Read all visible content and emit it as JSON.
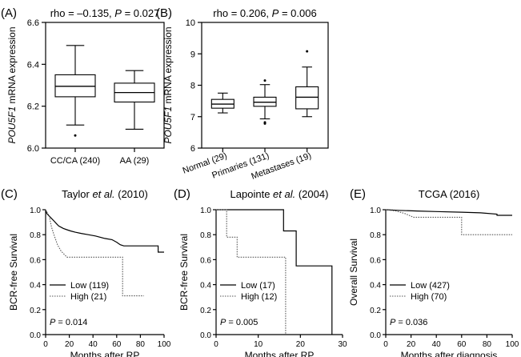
{
  "chart_data": [
    {
      "panel": "A",
      "type": "box",
      "title_rho": "rho = –0.135, ",
      "title_p": "P = 0.027",
      "ylabel_gene": "POU5F1",
      "ylabel_rest": " mRNA expression",
      "ylim": [
        6.0,
        6.6
      ],
      "yticks": [
        "6.0",
        "6.2",
        "6.4",
        "6.6"
      ],
      "ytick_values": [
        6.0,
        6.2,
        6.4,
        6.6
      ],
      "categories": [
        "CC/CA (240)",
        "AA (29)"
      ],
      "boxes": [
        {
          "name": "CC/CA (240)",
          "min": 6.11,
          "q1": 6.245,
          "median": 6.295,
          "q3": 6.35,
          "max": 6.49,
          "outliers": [
            6.06
          ]
        },
        {
          "name": "AA (29)",
          "min": 6.09,
          "q1": 6.22,
          "median": 6.265,
          "q3": 6.31,
          "max": 6.37,
          "outliers": []
        }
      ]
    },
    {
      "panel": "B",
      "type": "box",
      "title_rho": "rho = 0.206, ",
      "title_p": "P = 0.006",
      "ylabel_gene": "POU5F1",
      "ylabel_rest": " mRNA expression",
      "ylim": [
        6,
        10
      ],
      "yticks": [
        "6",
        "7",
        "8",
        "9",
        "10"
      ],
      "ytick_values": [
        6,
        7,
        8,
        9,
        10
      ],
      "categories": [
        "Normal (29)",
        "Primaries (131)",
        "Metastases (19)"
      ],
      "boxes": [
        {
          "name": "Normal (29)",
          "min": 7.12,
          "q1": 7.27,
          "median": 7.4,
          "q3": 7.55,
          "max": 7.75,
          "outliers": []
        },
        {
          "name": "Primaries (131)",
          "min": 6.93,
          "q1": 7.33,
          "median": 7.46,
          "q3": 7.62,
          "max": 8.02,
          "outliers": [
            8.15,
            6.82,
            6.78
          ]
        },
        {
          "name": "Metastases (19)",
          "min": 7.0,
          "q1": 7.25,
          "median": 7.62,
          "q3": 7.95,
          "max": 8.58,
          "outliers": [
            9.08
          ]
        }
      ]
    },
    {
      "panel": "C",
      "type": "line",
      "subtype": "kaplan-meier",
      "title_pre": "Taylor ",
      "title_em": "et al.",
      "title_post": " (2010)",
      "xlabel": "Months after RP",
      "ylabel": "BCR-free Survival",
      "xlim": [
        0,
        100
      ],
      "ylim": [
        0,
        1.0
      ],
      "xticks": [
        "0",
        "20",
        "40",
        "60",
        "80",
        "100"
      ],
      "xtick_values": [
        0,
        20,
        40,
        60,
        80,
        100
      ],
      "yticks": [
        "0.0",
        "0.2",
        "0.4",
        "0.6",
        "0.8",
        "1.0"
      ],
      "ytick_values": [
        0,
        0.2,
        0.4,
        0.6,
        0.8,
        1.0
      ],
      "p_label": "P",
      "p_value": " = 0.014",
      "legend": [
        "Low (119)",
        "High (21)"
      ],
      "series": [
        {
          "name": "Low (119)",
          "style": "solid",
          "points": [
            [
              0,
              1.0
            ],
            [
              1,
              0.97
            ],
            [
              3,
              0.95
            ],
            [
              5,
              0.93
            ],
            [
              7,
              0.91
            ],
            [
              9,
              0.89
            ],
            [
              11,
              0.87
            ],
            [
              13,
              0.86
            ],
            [
              15,
              0.85
            ],
            [
              18,
              0.84
            ],
            [
              21,
              0.83
            ],
            [
              25,
              0.82
            ],
            [
              30,
              0.81
            ],
            [
              36,
              0.8
            ],
            [
              42,
              0.79
            ],
            [
              50,
              0.77
            ],
            [
              56,
              0.76
            ],
            [
              60,
              0.74
            ],
            [
              63,
              0.72
            ],
            [
              66,
              0.71
            ],
            [
              95,
              0.71
            ],
            [
              95,
              0.66
            ],
            [
              100,
              0.66
            ]
          ]
        },
        {
          "name": "High (21)",
          "style": "dotted",
          "points": [
            [
              0,
              1.0
            ],
            [
              3,
              0.95
            ],
            [
              5,
              0.86
            ],
            [
              7,
              0.8
            ],
            [
              10,
              0.72
            ],
            [
              13,
              0.67
            ],
            [
              18,
              0.62
            ],
            [
              65,
              0.62
            ],
            [
              65,
              0.31
            ],
            [
              83,
              0.31
            ]
          ]
        }
      ]
    },
    {
      "panel": "D",
      "type": "line",
      "subtype": "kaplan-meier",
      "title_pre": "Lapointe ",
      "title_em": "et al.",
      "title_post": " (2004)",
      "xlabel": "Months after RP",
      "ylabel": "BCR-free Survival",
      "xlim": [
        0,
        30
      ],
      "ylim": [
        0,
        1.0
      ],
      "xticks": [
        "0",
        "10",
        "20",
        "30"
      ],
      "xtick_values": [
        0,
        10,
        20,
        30
      ],
      "yticks": [
        "0.0",
        "0.2",
        "0.4",
        "0.6",
        "0.8",
        "1.0"
      ],
      "ytick_values": [
        0,
        0.2,
        0.4,
        0.6,
        0.8,
        1.0
      ],
      "p_label": "P",
      "p_value": " = 0.005",
      "legend": [
        "Low (17)",
        "High (12)"
      ],
      "series": [
        {
          "name": "Low (17)",
          "style": "solid",
          "points": [
            [
              0,
              1.0
            ],
            [
              16,
              1.0
            ],
            [
              16,
              0.83
            ],
            [
              19,
              0.83
            ],
            [
              19,
              0.55
            ],
            [
              27.5,
              0.55
            ],
            [
              27.5,
              0
            ]
          ]
        },
        {
          "name": "High (12)",
          "style": "dotted",
          "points": [
            [
              0,
              1.0
            ],
            [
              2.5,
              1.0
            ],
            [
              2.5,
              0.78
            ],
            [
              5,
              0.78
            ],
            [
              5,
              0.62
            ],
            [
              16.5,
              0.62
            ],
            [
              16.5,
              0
            ]
          ]
        }
      ]
    },
    {
      "panel": "E",
      "type": "line",
      "subtype": "kaplan-meier",
      "title_pre": "TCGA (2016)",
      "title_em": "",
      "title_post": "",
      "xlabel": "Months after diagnosis",
      "ylabel": "Overall Survival",
      "xlim": [
        0,
        100
      ],
      "ylim": [
        0,
        1.0
      ],
      "xticks": [
        "0",
        "20",
        "40",
        "60",
        "80",
        "100"
      ],
      "xtick_values": [
        0,
        20,
        40,
        60,
        80,
        100
      ],
      "yticks": [
        "0.0",
        "0.2",
        "0.4",
        "0.6",
        "0.8",
        "1.0"
      ],
      "ytick_values": [
        0,
        0.2,
        0.4,
        0.6,
        0.8,
        1.0
      ],
      "p_label": "P",
      "p_value": " = 0.036",
      "legend": [
        "Low (427)",
        "High (70)"
      ],
      "series": [
        {
          "name": "Low (427)",
          "style": "solid",
          "points": [
            [
              0,
              1.0
            ],
            [
              10,
              0.995
            ],
            [
              25,
              0.99
            ],
            [
              40,
              0.985
            ],
            [
              60,
              0.98
            ],
            [
              75,
              0.975
            ],
            [
              88,
              0.965
            ],
            [
              88,
              0.955
            ],
            [
              100,
              0.955
            ]
          ]
        },
        {
          "name": "High (70)",
          "style": "dotted",
          "points": [
            [
              0,
              1.0
            ],
            [
              8,
              0.99
            ],
            [
              15,
              0.97
            ],
            [
              22,
              0.94
            ],
            [
              60,
              0.94
            ],
            [
              60,
              0.8
            ],
            [
              100,
              0.8
            ]
          ]
        }
      ]
    }
  ]
}
